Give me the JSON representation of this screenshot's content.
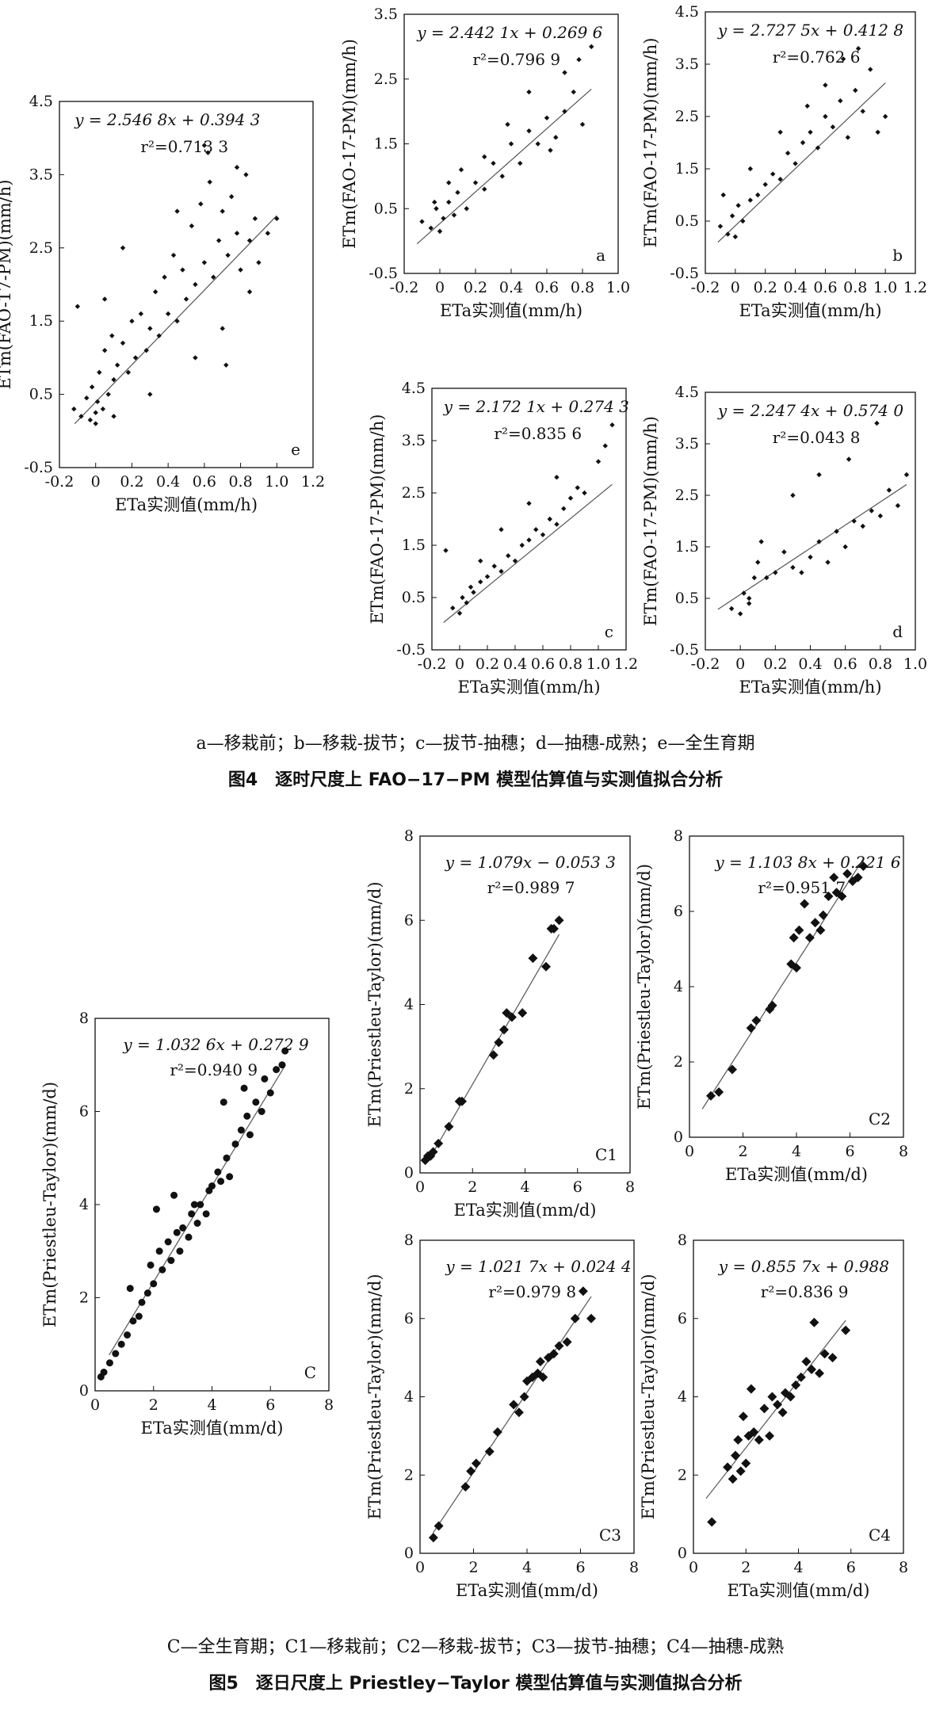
{
  "figure4": {
    "sublabels": "a—移栽前；b—移栽-拔节；c—拔节-抽穗；d—抽穗-成熟；e—全生育期",
    "caption": "图4　逐时尺度上 FAO−17−PM 模型估算值与实测值拟合分析"
  },
  "figure5": {
    "sublabels": "C—全生育期；C1—移栽前；C2—移栽-拔节；C3—拔节-抽穗；C4—抽穗-成熟",
    "caption": "图5　逐日尺度上 Priestley−Taylor 模型估算值与实测值拟合分析"
  },
  "chart_data": [
    {
      "type": "scatter",
      "panel": "e",
      "equation": "y = 2.546 8x + 0.394 3",
      "r2": "0.713 3",
      "xlabel": "ETa实测值(mm/h)",
      "ylabel": "ETm(FAO-17-PM)(mm/h)",
      "xlim": [
        -0.2,
        1.2
      ],
      "ylim": [
        -0.5,
        4.5
      ],
      "xticks": [
        "-0.2",
        "0",
        "0.2",
        "0.4",
        "0.6",
        "0.8",
        "1.0",
        "1.2"
      ],
      "yticks": [
        "-0.5",
        "0.5",
        "1.5",
        "2.5",
        "3.5",
        "4.5"
      ],
      "x": [
        -0.12,
        -0.08,
        -0.05,
        -0.03,
        -0.02,
        0.0,
        0.01,
        0.02,
        0.04,
        0.05,
        0.07,
        0.09,
        0.1,
        0.12,
        0.15,
        0.18,
        0.2,
        0.22,
        0.25,
        0.28,
        0.3,
        0.33,
        0.35,
        0.38,
        0.4,
        0.43,
        0.45,
        0.48,
        0.5,
        0.53,
        0.55,
        0.58,
        0.6,
        0.63,
        0.65,
        0.68,
        0.7,
        0.73,
        0.75,
        0.78,
        0.8,
        0.83,
        0.85,
        0.88,
        0.9,
        0.95,
        1.0,
        -0.1,
        0.0,
        0.05,
        0.1,
        0.15,
        0.3,
        0.45,
        0.55,
        0.62,
        0.7,
        0.78,
        0.85,
        0.6,
        0.72
      ],
      "y": [
        0.3,
        0.2,
        0.45,
        0.15,
        0.6,
        0.25,
        0.4,
        0.8,
        0.3,
        1.1,
        0.5,
        1.3,
        0.7,
        0.9,
        1.2,
        0.8,
        1.5,
        1.0,
        1.6,
        1.1,
        1.4,
        1.9,
        1.3,
        2.1,
        1.6,
        2.4,
        1.5,
        2.2,
        1.8,
        2.8,
        2.0,
        3.1,
        2.3,
        3.4,
        2.1,
        2.6,
        3.0,
        2.4,
        3.2,
        2.7,
        2.2,
        3.5,
        2.6,
        2.9,
        2.3,
        2.7,
        2.9,
        1.7,
        0.1,
        1.8,
        0.2,
        2.5,
        0.5,
        3.0,
        1.0,
        3.8,
        1.4,
        3.6,
        1.9,
        3.9,
        0.9
      ],
      "fit": [
        2.5468,
        0.3943
      ]
    },
    {
      "type": "scatter",
      "panel": "a",
      "equation": "y = 2.442 1x + 0.269 6",
      "r2": "0.796 9",
      "xlabel": "ETa实测值(mm/h)",
      "ylabel": "ETm(FAO-17-PM)(mm/h)",
      "xlim": [
        -0.2,
        1.0
      ],
      "ylim": [
        -0.5,
        3.5
      ],
      "xticks": [
        "-0.2",
        "0",
        "0.2",
        "0.4",
        "0.6",
        "0.8",
        "1.0"
      ],
      "yticks": [
        "-0.5",
        "0.5",
        "1.5",
        "2.5",
        "3.5"
      ],
      "x": [
        -0.1,
        -0.05,
        -0.02,
        0.0,
        0.02,
        0.05,
        0.08,
        0.1,
        0.15,
        0.2,
        0.25,
        0.3,
        0.35,
        0.4,
        0.45,
        0.5,
        0.55,
        0.6,
        0.65,
        0.7,
        0.75,
        0.8,
        0.85,
        0.78,
        0.7,
        0.62,
        0.5,
        0.38,
        0.25,
        0.12,
        0.05,
        -0.03
      ],
      "y": [
        0.3,
        0.2,
        0.5,
        0.15,
        0.35,
        0.6,
        0.4,
        0.75,
        0.5,
        0.9,
        0.8,
        1.2,
        1.0,
        1.5,
        1.2,
        1.7,
        1.5,
        1.9,
        1.6,
        2.0,
        2.3,
        1.8,
        3.0,
        2.8,
        2.6,
        1.4,
        2.3,
        1.8,
        1.3,
        1.1,
        0.9,
        0.6
      ],
      "fit": [
        2.4421,
        0.2696
      ]
    },
    {
      "type": "scatter",
      "panel": "b",
      "equation": "y = 2.727 5x + 0.412 8",
      "r2": "0.762 6",
      "xlabel": "ETa实测值(mm/h)",
      "ylabel": "ETm(FAO-17-PM)(mm/h)",
      "xlim": [
        -0.2,
        1.2
      ],
      "ylim": [
        -0.5,
        4.5
      ],
      "xticks": [
        "-0.2",
        "0",
        "0.2",
        "0.4",
        "0.6",
        "0.8",
        "1.0",
        "1.2"
      ],
      "yticks": [
        "-0.5",
        "0.5",
        "1.5",
        "2.5",
        "3.5",
        "4.5"
      ],
      "x": [
        -0.1,
        -0.05,
        -0.02,
        0.0,
        0.02,
        0.05,
        0.1,
        0.15,
        0.2,
        0.25,
        0.3,
        0.35,
        0.4,
        0.45,
        0.5,
        0.55,
        0.6,
        0.65,
        0.7,
        0.75,
        0.8,
        0.85,
        0.9,
        0.95,
        1.0,
        0.82,
        0.72,
        0.6,
        0.48,
        0.3,
        0.1,
        -0.08
      ],
      "y": [
        0.4,
        0.25,
        0.6,
        0.2,
        0.8,
        0.5,
        0.9,
        1.0,
        1.2,
        1.4,
        1.3,
        1.8,
        1.6,
        2.0,
        2.2,
        1.9,
        2.5,
        2.3,
        2.8,
        2.1,
        3.0,
        2.6,
        3.4,
        2.2,
        2.5,
        3.8,
        3.6,
        3.1,
        2.7,
        2.2,
        1.5,
        1.0
      ],
      "fit": [
        2.7275,
        0.4128
      ]
    },
    {
      "type": "scatter",
      "panel": "c",
      "equation": "y = 2.172 1x + 0.274 3",
      "r2": "0.835 6",
      "xlabel": "ETa实测值(mm/h)",
      "ylabel": "ETm(FAO-17-PM)(mm/h)",
      "xlim": [
        -0.2,
        1.2
      ],
      "ylim": [
        -0.5,
        4.5
      ],
      "xticks": [
        "-0.2",
        "0",
        "0.2",
        "0.4",
        "0.6",
        "0.8",
        "1.0",
        "1.2"
      ],
      "yticks": [
        "-0.5",
        "0.5",
        "1.5",
        "2.5",
        "3.5",
        "4.5"
      ],
      "x": [
        -0.05,
        0.0,
        0.02,
        0.05,
        0.08,
        0.1,
        0.15,
        0.2,
        0.25,
        0.3,
        0.35,
        0.4,
        0.45,
        0.5,
        0.55,
        0.6,
        0.65,
        0.7,
        0.75,
        0.8,
        0.85,
        0.9,
        1.0,
        1.05,
        1.1,
        0.7,
        0.5,
        0.3,
        0.15,
        -0.1
      ],
      "y": [
        0.3,
        0.2,
        0.5,
        0.4,
        0.7,
        0.6,
        0.8,
        0.9,
        1.1,
        1.0,
        1.3,
        1.2,
        1.5,
        1.6,
        1.8,
        1.7,
        2.0,
        1.9,
        2.2,
        2.4,
        2.6,
        2.5,
        3.1,
        3.4,
        3.8,
        2.8,
        2.3,
        1.8,
        1.2,
        1.4
      ],
      "fit": [
        2.1721,
        0.2743
      ]
    },
    {
      "type": "scatter",
      "panel": "d",
      "equation": "y = 2.247 4x + 0.574 0",
      "r2": "0.043 8",
      "xlabel": "ETa实测值(mm/h)",
      "ylabel": "ETm(FAO-17-PM)(mm/h)",
      "xlim": [
        -0.2,
        1.0
      ],
      "ylim": [
        -0.5,
        4.5
      ],
      "xticks": [
        "-0.2",
        "0",
        "0.2",
        "0.4",
        "0.6",
        "0.8",
        "1.0"
      ],
      "yticks": [
        "-0.5",
        "0.5",
        "1.5",
        "2.5",
        "3.5",
        "4.5"
      ],
      "x": [
        -0.05,
        0.0,
        0.02,
        0.05,
        0.08,
        0.1,
        0.15,
        0.2,
        0.25,
        0.3,
        0.35,
        0.4,
        0.45,
        0.5,
        0.55,
        0.6,
        0.65,
        0.7,
        0.75,
        0.8,
        0.85,
        0.9,
        0.95,
        0.78,
        0.62,
        0.45,
        0.3,
        0.12,
        0.05
      ],
      "y": [
        0.3,
        0.2,
        0.6,
        0.4,
        0.9,
        1.2,
        0.9,
        1.0,
        1.4,
        1.1,
        1.0,
        1.3,
        1.6,
        1.2,
        1.8,
        1.5,
        2.0,
        1.9,
        2.2,
        2.1,
        2.6,
        2.3,
        2.9,
        3.9,
        3.2,
        2.9,
        2.5,
        1.6,
        0.5
      ],
      "fit": [
        2.2474,
        0.574
      ]
    },
    {
      "type": "scatter",
      "panel": "C",
      "equation": "y = 1.032 6x + 0.272 9",
      "r2": "0.940 9",
      "xlabel": "ETa实测值(mm/d)",
      "ylabel": "ETm(Priestleu-Taylor)(mm/d)",
      "xlim": [
        0,
        8
      ],
      "ylim": [
        0,
        8
      ],
      "xticks": [
        "0",
        "2",
        "4",
        "6",
        "8"
      ],
      "yticks": [
        "0",
        "2",
        "4",
        "6",
        "8"
      ],
      "x": [
        0.2,
        0.3,
        0.5,
        0.7,
        0.9,
        1.1,
        1.3,
        1.5,
        1.6,
        1.8,
        1.9,
        2.0,
        2.2,
        2.3,
        2.5,
        2.6,
        2.8,
        2.9,
        3.0,
        3.2,
        3.3,
        3.5,
        3.6,
        3.8,
        3.9,
        4.0,
        4.2,
        4.3,
        4.5,
        4.6,
        4.8,
        5.0,
        5.2,
        5.3,
        5.5,
        5.7,
        5.8,
        6.0,
        6.2,
        6.4,
        6.5,
        1.2,
        2.1,
        2.7,
        3.4,
        4.4,
        5.1
      ],
      "y": [
        0.3,
        0.4,
        0.6,
        0.8,
        1.0,
        1.2,
        1.5,
        1.6,
        1.9,
        2.1,
        2.7,
        2.3,
        3.0,
        2.6,
        3.2,
        2.8,
        3.4,
        3.0,
        3.5,
        3.3,
        3.8,
        3.6,
        4.0,
        3.8,
        4.3,
        4.4,
        4.7,
        4.5,
        5.0,
        4.6,
        5.3,
        5.6,
        5.9,
        5.5,
        6.2,
        6.0,
        6.7,
        6.4,
        6.9,
        7.0,
        7.3,
        2.2,
        3.9,
        4.2,
        4.0,
        6.2,
        6.5
      ],
      "fit": [
        1.0326,
        0.2729
      ]
    },
    {
      "type": "scatter",
      "panel": "C1",
      "equation": "y = 1.079x − 0.053 3",
      "r2": "0.989 7",
      "xlabel": "ETa实测值(mm/d)",
      "ylabel": "ETm(Priestleu-Taylor)(mm/d)",
      "xlim": [
        0,
        8
      ],
      "ylim": [
        0,
        8
      ],
      "xticks": [
        "0",
        "2",
        "4",
        "6",
        "8"
      ],
      "yticks": [
        "0",
        "2",
        "4",
        "6",
        "8"
      ],
      "x": [
        0.2,
        0.3,
        0.4,
        0.5,
        0.7,
        1.1,
        1.5,
        1.6,
        2.8,
        3.0,
        3.2,
        3.3,
        3.5,
        3.9,
        4.3,
        4.8,
        5.0,
        5.1,
        5.3
      ],
      "y": [
        0.3,
        0.4,
        0.4,
        0.5,
        0.7,
        1.1,
        1.7,
        1.7,
        2.8,
        3.1,
        3.4,
        3.8,
        3.7,
        3.8,
        5.1,
        4.9,
        5.8,
        5.8,
        6.0
      ],
      "fit": [
        1.079,
        -0.0533
      ]
    },
    {
      "type": "scatter",
      "panel": "C2",
      "equation": "y = 1.103 8x + 0.221 6",
      "r2": "0.951 7",
      "xlabel": "ETa实测值(mm/d)",
      "ylabel": "ETm(Priestleu-Taylor)(mm/d)",
      "xlim": [
        0,
        8
      ],
      "ylim": [
        0,
        8
      ],
      "xticks": [
        "0",
        "2",
        "4",
        "6",
        "8"
      ],
      "yticks": [
        "0",
        "2",
        "4",
        "6",
        "8"
      ],
      "x": [
        0.8,
        1.1,
        1.6,
        2.3,
        2.5,
        3.0,
        3.1,
        3.8,
        3.9,
        4.0,
        4.1,
        4.3,
        4.5,
        4.7,
        4.9,
        5.0,
        5.2,
        5.4,
        5.5,
        5.7,
        5.9,
        6.1,
        6.3,
        6.5
      ],
      "y": [
        1.1,
        1.2,
        1.8,
        2.9,
        3.1,
        3.4,
        3.5,
        4.6,
        5.3,
        4.5,
        5.5,
        6.2,
        5.3,
        5.7,
        5.5,
        5.9,
        6.4,
        6.9,
        6.5,
        6.4,
        7.0,
        6.8,
        6.9,
        7.2
      ],
      "fit": [
        1.1038,
        0.2216
      ]
    },
    {
      "type": "scatter",
      "panel": "C3",
      "equation": "y = 1.021 7x + 0.024 4",
      "r2": "0.979 8",
      "xlabel": "ETa实测值(mm/d)",
      "ylabel": "ETm(Priestleu-Taylor)(mm/d)",
      "xlim": [
        0,
        8
      ],
      "ylim": [
        0,
        8
      ],
      "xticks": [
        "0",
        "2",
        "4",
        "6",
        "8"
      ],
      "yticks": [
        "0",
        "2",
        "4",
        "6",
        "8"
      ],
      "x": [
        0.5,
        0.7,
        1.7,
        1.9,
        2.1,
        2.6,
        2.9,
        3.5,
        3.7,
        3.9,
        4.0,
        4.2,
        4.4,
        4.5,
        4.6,
        4.8,
        5.0,
        5.2,
        5.5,
        5.8,
        6.1,
        6.4
      ],
      "y": [
        0.4,
        0.7,
        1.7,
        2.1,
        2.3,
        2.6,
        3.1,
        3.8,
        3.6,
        4.0,
        4.4,
        4.5,
        4.6,
        4.9,
        4.5,
        5.0,
        5.1,
        5.3,
        5.4,
        6.0,
        6.7,
        6.0
      ],
      "fit": [
        1.0217,
        0.0244
      ]
    },
    {
      "type": "scatter",
      "panel": "C4",
      "equation": "y = 0.855 7x + 0.988",
      "r2": "0.836 9",
      "xlabel": "ETa实测值(mm/d)",
      "ylabel": "ETm(Priestleu-Taylor)(mm/d)",
      "xlim": [
        0,
        8
      ],
      "ylim": [
        0,
        8
      ],
      "xticks": [
        "0",
        "2",
        "4",
        "6",
        "8"
      ],
      "yticks": [
        "0",
        "2",
        "4",
        "6",
        "8"
      ],
      "x": [
        0.7,
        1.3,
        1.5,
        1.6,
        1.7,
        1.8,
        1.9,
        2.0,
        2.1,
        2.2,
        2.3,
        2.5,
        2.7,
        2.9,
        3.0,
        3.2,
        3.4,
        3.5,
        3.7,
        3.9,
        4.1,
        4.3,
        4.5,
        4.6,
        4.8,
        5.0,
        5.3,
        5.8
      ],
      "y": [
        0.8,
        2.2,
        1.9,
        2.5,
        2.9,
        2.1,
        3.5,
        2.3,
        3.0,
        4.2,
        3.1,
        2.9,
        3.7,
        3.0,
        4.0,
        3.8,
        3.6,
        4.1,
        4.0,
        4.3,
        4.5,
        4.9,
        4.7,
        5.9,
        4.6,
        5.1,
        5.0,
        5.7
      ],
      "fit": [
        0.8557,
        0.988
      ]
    }
  ]
}
